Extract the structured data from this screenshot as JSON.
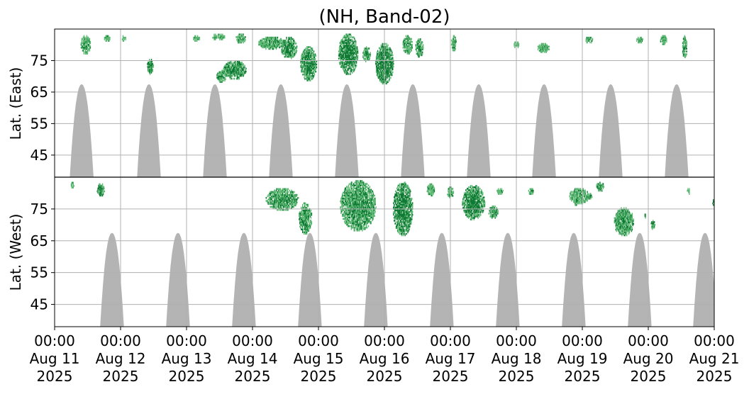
{
  "chart_data": {
    "type": "heatmap",
    "title": "(NH, Band-02)",
    "ylabel_top": "Lat. (East)",
    "ylabel_bottom": "Lat. (West)",
    "y_ticks_top": [
      "45",
      "55",
      "65",
      "75"
    ],
    "y_ticks_bottom": [
      "75",
      "65",
      "55",
      "45"
    ],
    "lat_range": [
      38,
      85
    ],
    "x_range_days": [
      0,
      10
    ],
    "grid": true,
    "x_ticks": [
      {
        "time": "00:00",
        "date": "Aug 11",
        "year": "2025"
      },
      {
        "time": "00:00",
        "date": "Aug 12",
        "year": "2025"
      },
      {
        "time": "00:00",
        "date": "Aug 13",
        "year": "2025"
      },
      {
        "time": "00:00",
        "date": "Aug 14",
        "year": "2025"
      },
      {
        "time": "00:00",
        "date": "Aug 15",
        "year": "2025"
      },
      {
        "time": "00:00",
        "date": "Aug 16",
        "year": "2025"
      },
      {
        "time": "00:00",
        "date": "Aug 17",
        "year": "2025"
      },
      {
        "time": "00:00",
        "date": "Aug 18",
        "year": "2025"
      },
      {
        "time": "00:00",
        "date": "Aug 19",
        "year": "2025"
      },
      {
        "time": "00:00",
        "date": "Aug 20",
        "year": "2025"
      },
      {
        "time": "00:00",
        "date": "Aug 21",
        "year": "2025"
      }
    ],
    "colors": {
      "nodata": "#b4b4b4",
      "green_light": "#5cb873",
      "green_dark": "#0f7a34",
      "grid": "#b0b0b0"
    },
    "nodata_top_centers_days": [
      0.41,
      1.43,
      2.43,
      3.43,
      4.43,
      5.43,
      6.43,
      7.42,
      8.43,
      9.43
    ],
    "nodata_bottom_centers_days": [
      0.87,
      1.87,
      2.87,
      3.87,
      4.87,
      5.87,
      6.87,
      7.87,
      8.87,
      9.86
    ],
    "nodata_min_lat": 67.5,
    "activity_top": [
      {
        "day": 0.47,
        "lat": 80,
        "w": 0.15,
        "h": 6,
        "level": 0.4
      },
      {
        "day": 0.8,
        "lat": 82,
        "w": 0.1,
        "h": 2,
        "level": 0.2
      },
      {
        "day": 1.05,
        "lat": 82,
        "w": 0.06,
        "h": 2,
        "level": 0.2
      },
      {
        "day": 1.45,
        "lat": 73,
        "w": 0.1,
        "h": 5,
        "level": 0.6
      },
      {
        "day": 2.15,
        "lat": 82,
        "w": 0.1,
        "h": 2,
        "level": 0.2
      },
      {
        "day": 2.48,
        "lat": 82.5,
        "w": 0.2,
        "h": 2,
        "level": 0.25
      },
      {
        "day": 2.53,
        "lat": 70,
        "w": 0.15,
        "h": 4,
        "level": 0.4
      },
      {
        "day": 2.73,
        "lat": 72,
        "w": 0.35,
        "h": 6,
        "level": 0.75
      },
      {
        "day": 2.82,
        "lat": 82,
        "w": 0.15,
        "h": 3,
        "level": 0.35
      },
      {
        "day": 3.19,
        "lat": 80,
        "w": 0.16,
        "h": 2,
        "level": 0.25
      },
      {
        "day": 3.29,
        "lat": 80.5,
        "w": 0.4,
        "h": 4,
        "level": 0.4
      },
      {
        "day": 3.55,
        "lat": 79,
        "w": 0.25,
        "h": 7,
        "level": 0.75
      },
      {
        "day": 3.85,
        "lat": 74,
        "w": 0.25,
        "h": 11,
        "level": 0.85
      },
      {
        "day": 4.45,
        "lat": 77,
        "w": 0.3,
        "h": 13,
        "level": 0.9
      },
      {
        "day": 4.73,
        "lat": 77,
        "w": 0.12,
        "h": 5,
        "level": 0.45
      },
      {
        "day": 5.0,
        "lat": 74,
        "w": 0.28,
        "h": 13,
        "level": 0.9
      },
      {
        "day": 5.35,
        "lat": 80,
        "w": 0.15,
        "h": 6,
        "level": 0.45
      },
      {
        "day": 5.53,
        "lat": 79,
        "w": 0.12,
        "h": 6,
        "level": 0.5
      },
      {
        "day": 6.05,
        "lat": 80.5,
        "w": 0.08,
        "h": 5,
        "level": 0.35
      },
      {
        "day": 7.0,
        "lat": 80,
        "w": 0.08,
        "h": 2,
        "level": 0.2
      },
      {
        "day": 7.41,
        "lat": 79,
        "w": 0.18,
        "h": 3,
        "level": 0.25
      },
      {
        "day": 8.1,
        "lat": 81.5,
        "w": 0.12,
        "h": 2,
        "level": 0.3
      },
      {
        "day": 8.87,
        "lat": 81.5,
        "w": 0.1,
        "h": 2,
        "level": 0.2
      },
      {
        "day": 9.23,
        "lat": 81.5,
        "w": 0.1,
        "h": 3,
        "level": 0.3
      },
      {
        "day": 9.55,
        "lat": 79,
        "w": 0.07,
        "h": 8,
        "level": 0.35
      }
    ],
    "activity_bottom": [
      {
        "day": 0.27,
        "lat": 82.5,
        "w": 0.05,
        "h": 2,
        "level": 0.3
      },
      {
        "day": 0.7,
        "lat": 81,
        "w": 0.12,
        "h": 4,
        "level": 0.7
      },
      {
        "day": 3.45,
        "lat": 78,
        "w": 0.5,
        "h": 7,
        "level": 0.55
      },
      {
        "day": 3.8,
        "lat": 72,
        "w": 0.2,
        "h": 10,
        "level": 0.5
      },
      {
        "day": 4.6,
        "lat": 76,
        "w": 0.55,
        "h": 16,
        "level": 0.6
      },
      {
        "day": 5.28,
        "lat": 75,
        "w": 0.3,
        "h": 17,
        "level": 0.9
      },
      {
        "day": 5.7,
        "lat": 81,
        "w": 0.12,
        "h": 4,
        "level": 0.3
      },
      {
        "day": 6.0,
        "lat": 80,
        "w": 0.1,
        "h": 4,
        "level": 0.3
      },
      {
        "day": 6.35,
        "lat": 77,
        "w": 0.35,
        "h": 11,
        "level": 0.85
      },
      {
        "day": 6.65,
        "lat": 74,
        "w": 0.15,
        "h": 4,
        "level": 0.55
      },
      {
        "day": 6.75,
        "lat": 80.5,
        "w": 0.1,
        "h": 2,
        "level": 0.2
      },
      {
        "day": 7.22,
        "lat": 80.5,
        "w": 0.08,
        "h": 2,
        "level": 0.3
      },
      {
        "day": 7.95,
        "lat": 79,
        "w": 0.3,
        "h": 5,
        "level": 0.35
      },
      {
        "day": 7.9,
        "lat": 77,
        "w": 0.05,
        "h": 2,
        "level": 0.2
      },
      {
        "day": 8.1,
        "lat": 79,
        "w": 0.1,
        "h": 2,
        "level": 0.25
      },
      {
        "day": 8.27,
        "lat": 82,
        "w": 0.12,
        "h": 3,
        "level": 0.6
      },
      {
        "day": 8.63,
        "lat": 71,
        "w": 0.3,
        "h": 9,
        "level": 0.55
      },
      {
        "day": 8.95,
        "lat": 73,
        "w": 0.04,
        "h": 2,
        "level": 0.2
      },
      {
        "day": 9.07,
        "lat": 70,
        "w": 0.07,
        "h": 3,
        "level": 0.3
      },
      {
        "day": 9.61,
        "lat": 80.5,
        "w": 0.05,
        "h": 2,
        "level": 0.2
      },
      {
        "day": 9.99,
        "lat": 77,
        "w": 0.04,
        "h": 2,
        "level": 0.3
      }
    ]
  }
}
